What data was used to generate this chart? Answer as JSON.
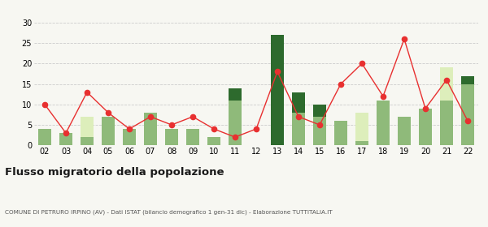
{
  "years": [
    "02",
    "03",
    "04",
    "05",
    "06",
    "07",
    "08",
    "09",
    "10",
    "11",
    "12",
    "13",
    "14",
    "15",
    "16",
    "17",
    "18",
    "19",
    "20",
    "21",
    "22"
  ],
  "iscritti_altri_comuni": [
    4,
    3,
    2,
    7,
    4,
    8,
    4,
    4,
    2,
    11,
    0,
    0,
    8,
    7,
    6,
    1,
    11,
    7,
    9,
    11,
    15
  ],
  "iscritti_estero": [
    0,
    0,
    5,
    0,
    0,
    0,
    0,
    0,
    0,
    0,
    0,
    0,
    0,
    0,
    0,
    7,
    0,
    0,
    0,
    8,
    0
  ],
  "iscritti_altri": [
    0,
    0,
    0,
    0,
    0,
    0,
    0,
    0,
    0,
    3,
    0,
    27,
    5,
    3,
    0,
    0,
    0,
    0,
    0,
    0,
    2
  ],
  "cancellati": [
    10,
    3,
    13,
    8,
    4,
    7,
    5,
    7,
    4,
    2,
    4,
    18,
    7,
    5,
    15,
    20,
    12,
    26,
    9,
    16,
    6
  ],
  "color_altri_comuni": "#8fba7a",
  "color_estero": "#ddeebb",
  "color_altri": "#2d6a2d",
  "color_cancellati": "#e83030",
  "bg_color": "#f7f7f2",
  "grid_color": "#cccccc",
  "ylim": [
    0,
    30
  ],
  "yticks": [
    0,
    5,
    10,
    15,
    20,
    25,
    30
  ],
  "title": "Flusso migratorio della popolazione",
  "subtitle": "COMUNE DI PETRURO IRPINO (AV) - Dati ISTAT (bilancio demografico 1 gen-31 dic) - Elaborazione TUTTITALIA.IT"
}
